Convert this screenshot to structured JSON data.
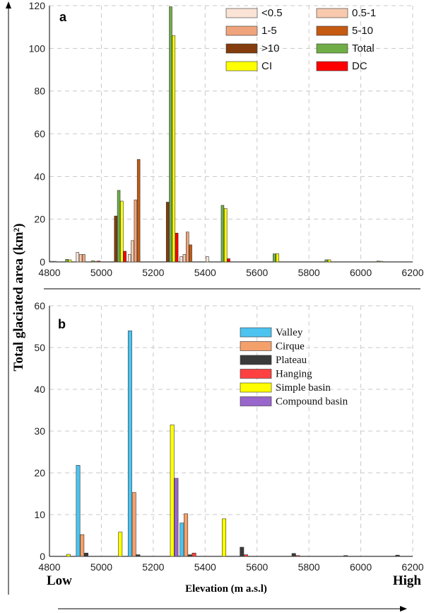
{
  "y_axis_label": "Total glaciated area (km²)",
  "x_axis_label": "Elevation (m a.s.l)",
  "low_label": "Low",
  "high_label": "High",
  "chart_data": [
    {
      "type": "bar",
      "panel_label": "a",
      "x": [
        4850,
        4950,
        5050,
        5150,
        5250,
        5350,
        5450,
        5550,
        5650,
        5750,
        5850,
        5950,
        6050,
        6150
      ],
      "xlim": [
        4800,
        6200
      ],
      "ylim": [
        0,
        120
      ],
      "xticks": [
        4800,
        5000,
        5200,
        5400,
        5600,
        5800,
        6000,
        6200
      ],
      "yticks": [
        0,
        20,
        40,
        60,
        80,
        100,
        120
      ],
      "legend_position": "top-right",
      "series": [
        {
          "name": "<0.5",
          "color": "#fbe3d6",
          "values": [
            0.3,
            4.5,
            0,
            3.5,
            0,
            2.5,
            2.5,
            0,
            0,
            0,
            0,
            0,
            0,
            0
          ]
        },
        {
          "name": "0.5-1",
          "color": "#f8c9ad",
          "values": [
            0.3,
            3.5,
            0,
            10,
            0,
            3.5,
            0,
            0,
            0,
            0,
            0,
            0,
            0,
            0
          ]
        },
        {
          "name": "1-5",
          "color": "#f0a47c",
          "values": [
            0,
            3.5,
            0,
            29,
            0,
            14,
            0,
            0,
            0,
            0,
            0,
            0,
            0,
            0
          ]
        },
        {
          "name": "5-10",
          "color": "#c55a11",
          "values": [
            0,
            0,
            0,
            48,
            0,
            8,
            0,
            0,
            0,
            0,
            0,
            0,
            0,
            0
          ]
        },
        {
          "name": ">10",
          "color": "#843c0c",
          "values": [
            0,
            0,
            21.5,
            0,
            28,
            0,
            0,
            0,
            0,
            0,
            0,
            0,
            0,
            0
          ]
        },
        {
          "name": "Total",
          "color": "#70ad47",
          "values": [
            1.2,
            0.5,
            33.5,
            0,
            119.5,
            0,
            26.5,
            0,
            3.8,
            0,
            1.0,
            0,
            0.4,
            0
          ]
        },
        {
          "name": "CI",
          "color": "#ffff00",
          "values": [
            1.0,
            0.3,
            28.5,
            0,
            106,
            0,
            25,
            0,
            3.8,
            0,
            1.0,
            0,
            0.3,
            0
          ]
        },
        {
          "name": "DC",
          "color": "#ff0000",
          "values": [
            0,
            0.4,
            5,
            0,
            13.5,
            0,
            1.5,
            0,
            0,
            0,
            0,
            0,
            0,
            0
          ]
        }
      ]
    },
    {
      "type": "bar",
      "panel_label": "b",
      "x": [
        4850,
        4950,
        5050,
        5150,
        5250,
        5350,
        5450,
        5550,
        5650,
        5750,
        5850,
        5950,
        6050,
        6150
      ],
      "xlim": [
        4800,
        6200
      ],
      "ylim": [
        0,
        60
      ],
      "xticks": [
        4800,
        5000,
        5200,
        5400,
        5600,
        5800,
        6000,
        6200
      ],
      "yticks": [
        0,
        10,
        20,
        30,
        40,
        50,
        60
      ],
      "legend_position": "top-right",
      "series": [
        {
          "name": "Valley",
          "color": "#4dc3ef",
          "values": [
            0,
            21.8,
            0,
            54,
            0,
            8,
            0,
            0,
            0,
            0,
            0,
            0,
            0,
            0
          ]
        },
        {
          "name": "Cirque",
          "color": "#f4a06a",
          "values": [
            0,
            5.2,
            0,
            15.3,
            0,
            10.2,
            0,
            0,
            0,
            0,
            0,
            0,
            0,
            0
          ]
        },
        {
          "name": "Plateau",
          "color": "#3a3a3a",
          "values": [
            0,
            0.8,
            0,
            0.4,
            0,
            0.4,
            0,
            2.2,
            0,
            0.7,
            0,
            0.2,
            0,
            0.3
          ]
        },
        {
          "name": "Hanging",
          "color": "#ff4040",
          "values": [
            0,
            0,
            0,
            0,
            0,
            0.8,
            0,
            0.4,
            0,
            0.2,
            0,
            0,
            0,
            0
          ]
        },
        {
          "name": "Simple basin",
          "color": "#ffff00",
          "values": [
            0.5,
            0,
            5.8,
            0,
            31.5,
            0,
            9,
            0,
            0,
            0,
            0,
            0,
            0,
            0
          ]
        },
        {
          "name": "Compound basin",
          "color": "#9966cc",
          "values": [
            0,
            0,
            0,
            0,
            18.7,
            0,
            0,
            0,
            0,
            0,
            0,
            0,
            0,
            0
          ]
        }
      ]
    }
  ]
}
